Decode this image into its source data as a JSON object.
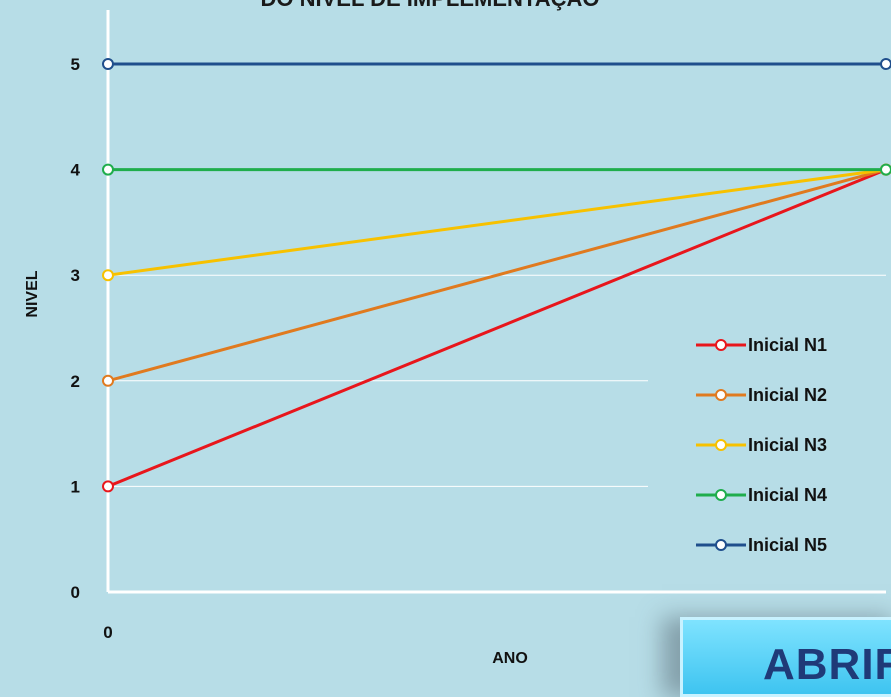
{
  "chart_data": {
    "type": "line",
    "title": "DO NÍVEL DE IMPLEMENTAÇÃO",
    "xlabel": "ANO",
    "ylabel": "NIVEL",
    "ylim": [
      0,
      5
    ],
    "y_ticks": [
      "0",
      "1",
      "2",
      "3",
      "4",
      "5"
    ],
    "x_ticks": [
      "0"
    ],
    "x": [
      0,
      1
    ],
    "grid": true,
    "legend_position": "right",
    "series": [
      {
        "name": "Inicial N1",
        "values": [
          1,
          4
        ],
        "color": "#e8161c"
      },
      {
        "name": "Inicial N2",
        "values": [
          2,
          4
        ],
        "color": "#e07a1f"
      },
      {
        "name": "Inicial N3",
        "values": [
          3,
          4
        ],
        "color": "#f7c100"
      },
      {
        "name": "Inicial N4",
        "values": [
          4,
          4
        ],
        "color": "#1fad4c"
      },
      {
        "name": "Inicial N5",
        "values": [
          5,
          5
        ],
        "color": "#1f4e8c"
      }
    ]
  },
  "button": {
    "label": "ABRIR"
  }
}
